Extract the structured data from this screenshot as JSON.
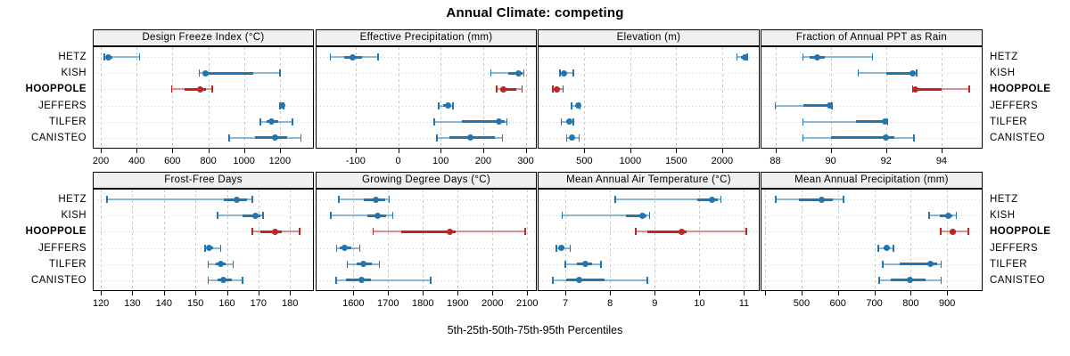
{
  "title": "Annual Climate: competing",
  "bottom_axis_label": "5th-25th-50th-75th-95th Percentiles",
  "stations": [
    {
      "name": "HETZ",
      "highlight": false
    },
    {
      "name": "KISH",
      "highlight": false
    },
    {
      "name": "HOOPPOLE",
      "highlight": true
    },
    {
      "name": "JEFFERS",
      "highlight": false
    },
    {
      "name": "TILFER",
      "highlight": false
    },
    {
      "name": "CANISTEO",
      "highlight": false
    }
  ],
  "colors": {
    "series_normal": "#1e77b4",
    "series_highlight": "#bd2527",
    "header_bg": "#f0f0f0",
    "grid": "#c9c9c9",
    "panel_border": "#000000"
  },
  "chart_data": {
    "type": "dot-whisker-trellis",
    "percentiles": [
      5,
      25,
      50,
      75,
      95
    ],
    "layout": "2 rows x 4 columns, shared station y-axis",
    "panels": [
      {
        "title": "Design Freeze Index (°C)",
        "row": 0,
        "col": 0,
        "xlim": [
          160,
          1385
        ],
        "ticks": [
          {
            "v": 200,
            "l": "200"
          },
          {
            "v": 400,
            "l": "400"
          },
          {
            "v": 600,
            "l": "600"
          },
          {
            "v": 800,
            "l": "800"
          },
          {
            "v": 1000,
            "l": "1000"
          },
          {
            "v": 1200,
            "l": "1200"
          }
        ],
        "values": [
          [
            220,
            228,
            241,
            263,
            416
          ],
          [
            750,
            778,
            786,
            1050,
            1201
          ],
          [
            595,
            670,
            753,
            785,
            822
          ],
          [
            1201,
            1206,
            1212,
            1217,
            1221
          ],
          [
            1091,
            1127,
            1155,
            1193,
            1271
          ],
          [
            916,
            1062,
            1173,
            1243,
            1318
          ]
        ]
      },
      {
        "title": "Effective Precipitation (mm)",
        "row": 0,
        "col": 1,
        "xlim": [
          -192,
          324
        ],
        "ticks": [
          {
            "v": -100,
            "l": "-100"
          },
          {
            "v": 0,
            "l": "0"
          },
          {
            "v": 100,
            "l": "100"
          },
          {
            "v": 200,
            "l": "200"
          },
          {
            "v": 300,
            "l": "300"
          }
        ],
        "values": [
          [
            -160,
            -127,
            -107,
            -85,
            -47
          ],
          [
            218,
            258,
            284,
            292,
            296
          ],
          [
            232,
            240,
            247,
            278,
            291
          ],
          [
            95,
            105,
            118,
            123,
            129
          ],
          [
            85,
            150,
            237,
            250,
            256
          ],
          [
            91,
            120,
            170,
            227,
            245
          ]
        ]
      },
      {
        "title": "Elevation (m)",
        "row": 0,
        "col": 2,
        "xlim": [
          0,
          2400
        ],
        "ticks": [
          {
            "v": 500,
            "l": "500"
          },
          {
            "v": 1000,
            "l": "1000"
          },
          {
            "v": 1500,
            "l": "1500"
          },
          {
            "v": 2000,
            "l": "2000"
          }
        ],
        "values": [
          [
            2160,
            2205,
            2246,
            2262,
            2275
          ],
          [
            234,
            258,
            275,
            297,
            378
          ],
          [
            154,
            183,
            202,
            228,
            265
          ],
          [
            361,
            418,
            433,
            442,
            452
          ],
          [
            250,
            308,
            337,
            355,
            378
          ],
          [
            308,
            338,
            361,
            386,
            442
          ]
        ]
      },
      {
        "title": "Fraction of Annual PPT as Rain",
        "row": 0,
        "col": 3,
        "xlim": [
          87.5,
          95.45
        ],
        "ticks": [
          {
            "v": 88,
            "l": "88"
          },
          {
            "v": 90,
            "l": "90"
          },
          {
            "v": 92,
            "l": "92"
          },
          {
            "v": 94,
            "l": "94"
          }
        ],
        "values": [
          [
            89.0,
            89.25,
            89.5,
            89.8,
            91.5
          ],
          [
            91.0,
            92.0,
            92.95,
            93.0,
            93.1
          ],
          [
            92.95,
            93.0,
            93.05,
            94.0,
            95.0
          ],
          [
            88.0,
            89.0,
            89.95,
            90.0,
            90.05
          ],
          [
            89.0,
            90.9,
            91.95,
            92.0,
            92.05
          ],
          [
            89.0,
            90.0,
            92.0,
            92.3,
            93.0
          ]
        ]
      },
      {
        "title": "Frost-Free Days",
        "row": 1,
        "col": 0,
        "xlim": [
          117.7,
          187.3
        ],
        "ticks": [
          {
            "v": 120,
            "l": "120"
          },
          {
            "v": 130,
            "l": "130"
          },
          {
            "v": 140,
            "l": "140"
          },
          {
            "v": 150,
            "l": "150"
          },
          {
            "v": 160,
            "l": "160"
          },
          {
            "v": 170,
            "l": "170"
          },
          {
            "v": 180,
            "l": "180"
          }
        ],
        "values": [
          [
            122,
            159,
            163,
            166.5,
            168
          ],
          [
            157,
            165,
            169,
            170.5,
            171.5
          ],
          [
            168,
            170.5,
            175.3,
            177.5,
            183
          ],
          [
            153,
            153.5,
            154.2,
            155.5,
            158
          ],
          [
            154,
            156.5,
            158,
            159.5,
            162
          ],
          [
            154,
            157,
            159,
            161.5,
            165
          ]
        ]
      },
      {
        "title": "Growing Degree Days (°C)",
        "row": 1,
        "col": 1,
        "xlim": [
          1494,
          2125
        ],
        "ticks": [
          {
            "v": 1600,
            "l": "1600"
          },
          {
            "v": 1700,
            "l": "1700"
          },
          {
            "v": 1800,
            "l": "1800"
          },
          {
            "v": 1900,
            "l": "1900"
          },
          {
            "v": 2000,
            "l": "2000"
          },
          {
            "v": 2100,
            "l": "2100"
          }
        ],
        "values": [
          [
            1558,
            1630,
            1664,
            1692,
            1703
          ],
          [
            1535,
            1641,
            1669,
            1694,
            1713
          ],
          [
            1657,
            1738,
            1878,
            1895,
            2094
          ],
          [
            1552,
            1561,
            1574,
            1594,
            1618
          ],
          [
            1582,
            1610,
            1629,
            1652,
            1675
          ],
          [
            1550,
            1578,
            1623,
            1650,
            1822
          ]
        ]
      },
      {
        "title": "Mean Annual Air Temperature (°C)",
        "row": 1,
        "col": 2,
        "xlim": [
          6.4,
          11.33
        ],
        "ticks": [
          {
            "v": 7,
            "l": "7"
          },
          {
            "v": 8,
            "l": "8"
          },
          {
            "v": 9,
            "l": "9"
          },
          {
            "v": 10,
            "l": "10"
          },
          {
            "v": 11,
            "l": "11"
          }
        ],
        "values": [
          [
            8.12,
            9.95,
            10.29,
            10.42,
            10.48
          ],
          [
            6.93,
            8.36,
            8.73,
            8.82,
            8.88
          ],
          [
            8.58,
            8.84,
            9.6,
            9.71,
            11.05
          ],
          [
            6.8,
            6.85,
            6.91,
            6.98,
            7.11
          ],
          [
            7.0,
            7.25,
            7.44,
            7.6,
            7.8
          ],
          [
            6.72,
            7.01,
            7.31,
            7.87,
            8.84
          ]
        ]
      },
      {
        "title": "Mean Annual Precipitation (mm)",
        "row": 1,
        "col": 3,
        "xlim": [
          390,
          995
        ],
        "ticks": [
          {
            "v": 400,
            "l": ""
          },
          {
            "v": 500,
            "l": "500"
          },
          {
            "v": 600,
            "l": "600"
          },
          {
            "v": 700,
            "l": "700"
          },
          {
            "v": 800,
            "l": "800"
          },
          {
            "v": 900,
            "l": "900"
          }
        ],
        "values": [
          [
            429,
            494,
            556,
            585,
            615
          ],
          [
            851,
            880,
            903,
            915,
            925
          ],
          [
            882,
            906,
            916,
            924,
            958
          ],
          [
            711,
            725,
            734,
            741,
            752
          ],
          [
            723,
            770,
            855,
            872,
            884
          ],
          [
            713,
            744,
            798,
            841,
            884
          ]
        ]
      }
    ]
  }
}
